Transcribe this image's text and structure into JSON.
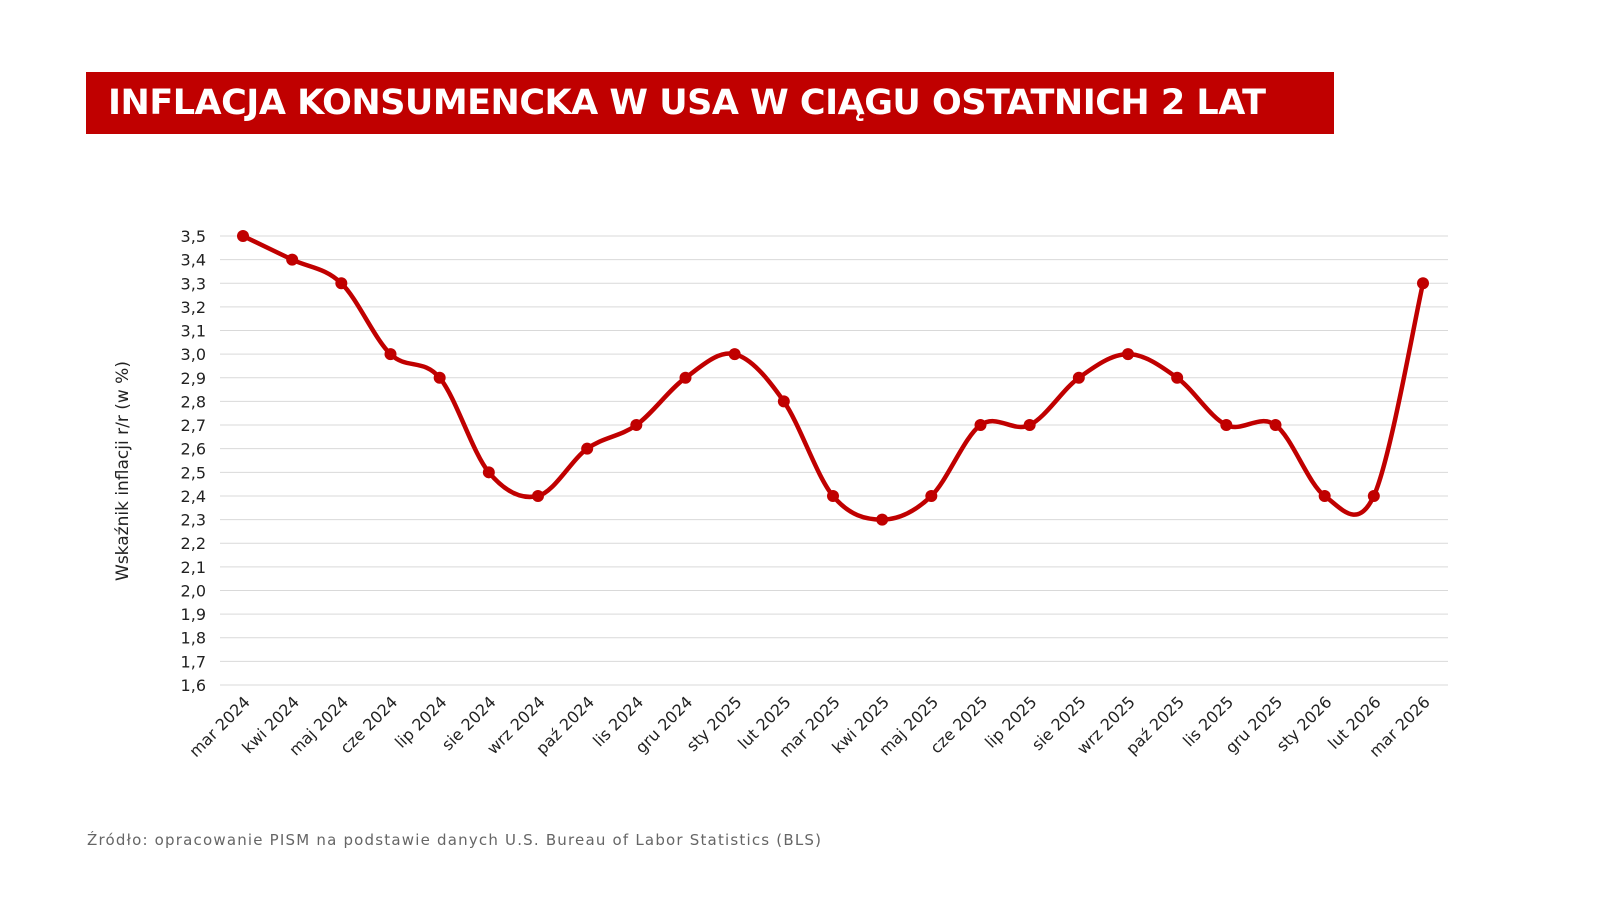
{
  "title": "INFLACJA KONSUMENCKA W USA W CIĄGU OSTATNICH 2 LAT",
  "source": "Źródło: opracowanie PISM na podstawie danych U.S. Bureau of Labor Statistics (BLS)",
  "chart_data": {
    "type": "line",
    "smooth": true,
    "markers": true,
    "color": "#c00000",
    "ylabel": "Wskaźnik inflacji r/r (w %)",
    "xlabel": "",
    "ylim": [
      1.6,
      3.5
    ],
    "ytick_step": 0.1,
    "grid": "horizontal",
    "categories": [
      "mar 2024",
      "kwi 2024",
      "maj 2024",
      "cze 2024",
      "lip 2024",
      "sie 2024",
      "wrz 2024",
      "paź 2024",
      "lis 2024",
      "gru 2024",
      "sty 2025",
      "lut 2025",
      "mar 2025",
      "kwi 2025",
      "maj 2025",
      "cze 2025",
      "lip 2025",
      "sie 2025",
      "wrz 2025",
      "paź 2025",
      "lis 2025",
      "gru 2025",
      "sty 2026",
      "lut 2026",
      "mar 2026"
    ],
    "values": [
      3.5,
      3.4,
      3.3,
      3.0,
      2.9,
      2.5,
      2.4,
      2.6,
      2.7,
      2.9,
      3.0,
      2.8,
      2.4,
      2.3,
      2.4,
      2.7,
      2.7,
      2.9,
      3.0,
      2.9,
      2.7,
      2.7,
      2.4,
      2.4,
      3.3
    ]
  }
}
